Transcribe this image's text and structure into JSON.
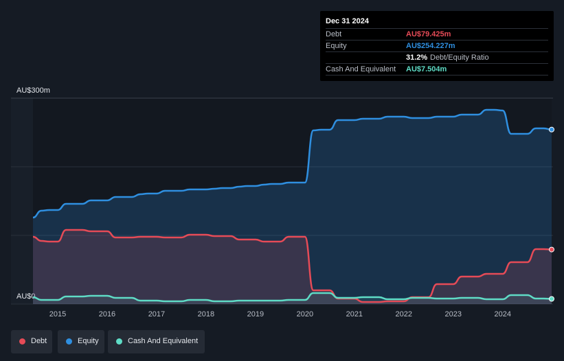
{
  "tooltip": {
    "date": "Dec 31 2024",
    "debt_label": "Debt",
    "debt_value": "AU$79.425m",
    "equity_label": "Equity",
    "equity_value": "AU$254.227m",
    "ratio_value": "31.2%",
    "ratio_label": "Debt/Equity Ratio",
    "cash_label": "Cash And Equivalent",
    "cash_value": "AU$7.504m"
  },
  "legend": {
    "debt": "Debt",
    "equity": "Equity",
    "cash": "Cash And Equivalent"
  },
  "colors": {
    "debt": "#e64b57",
    "equity": "#2f8fe0",
    "cash": "#5fdcc6",
    "background": "#151b24"
  },
  "chart_data": {
    "type": "area",
    "y_unit": "AU$ millions",
    "ylim": [
      0,
      300
    ],
    "y_tick_labels": [
      "AU$0",
      "AU$300m"
    ],
    "x_tick_labels": [
      "2015",
      "2016",
      "2017",
      "2018",
      "2019",
      "2020",
      "2021",
      "2022",
      "2023",
      "2024"
    ],
    "grid": true,
    "legend_position": "bottom-left",
    "series": [
      {
        "name": "Debt",
        "points": [
          [
            2014.5,
            98
          ],
          [
            2014.67,
            92
          ],
          [
            2014.83,
            91
          ],
          [
            2015.0,
            91
          ],
          [
            2015.17,
            108
          ],
          [
            2015.33,
            108
          ],
          [
            2015.5,
            108
          ],
          [
            2015.67,
            106
          ],
          [
            2015.83,
            106
          ],
          [
            2016.0,
            106
          ],
          [
            2016.17,
            97
          ],
          [
            2016.33,
            97
          ],
          [
            2016.5,
            97
          ],
          [
            2016.67,
            98
          ],
          [
            2016.83,
            98
          ],
          [
            2017.0,
            98
          ],
          [
            2017.17,
            97
          ],
          [
            2017.33,
            97
          ],
          [
            2017.5,
            97
          ],
          [
            2017.67,
            101
          ],
          [
            2017.83,
            101
          ],
          [
            2018.0,
            101
          ],
          [
            2018.17,
            99
          ],
          [
            2018.33,
            99
          ],
          [
            2018.5,
            99
          ],
          [
            2018.67,
            94
          ],
          [
            2018.83,
            94
          ],
          [
            2019.0,
            94
          ],
          [
            2019.17,
            91
          ],
          [
            2019.33,
            91
          ],
          [
            2019.5,
            91
          ],
          [
            2019.67,
            98
          ],
          [
            2019.83,
            98
          ],
          [
            2020.0,
            98
          ],
          [
            2020.17,
            20
          ],
          [
            2020.33,
            20
          ],
          [
            2020.5,
            20
          ],
          [
            2020.67,
            8
          ],
          [
            2020.83,
            8
          ],
          [
            2021.0,
            8
          ],
          [
            2021.17,
            3
          ],
          [
            2021.33,
            3
          ],
          [
            2021.5,
            3
          ],
          [
            2021.67,
            4
          ],
          [
            2021.83,
            4
          ],
          [
            2022.0,
            4
          ],
          [
            2022.17,
            10
          ],
          [
            2022.33,
            10
          ],
          [
            2022.5,
            10
          ],
          [
            2022.67,
            29
          ],
          [
            2022.83,
            29
          ],
          [
            2023.0,
            29
          ],
          [
            2023.17,
            40
          ],
          [
            2023.33,
            40
          ],
          [
            2023.5,
            40
          ],
          [
            2023.67,
            44
          ],
          [
            2023.83,
            44
          ],
          [
            2024.0,
            44
          ],
          [
            2024.17,
            61
          ],
          [
            2024.33,
            61
          ],
          [
            2024.5,
            61
          ],
          [
            2024.67,
            80
          ],
          [
            2024.83,
            80
          ],
          [
            2024.99,
            79.425
          ]
        ]
      },
      {
        "name": "Equity",
        "points": [
          [
            2014.5,
            126
          ],
          [
            2014.67,
            136
          ],
          [
            2014.83,
            137
          ],
          [
            2015.0,
            137
          ],
          [
            2015.17,
            146
          ],
          [
            2015.33,
            146
          ],
          [
            2015.5,
            146
          ],
          [
            2015.67,
            151
          ],
          [
            2015.83,
            151
          ],
          [
            2016.0,
            151
          ],
          [
            2016.17,
            156
          ],
          [
            2016.33,
            156
          ],
          [
            2016.5,
            156
          ],
          [
            2016.67,
            160
          ],
          [
            2016.83,
            161
          ],
          [
            2017.0,
            161
          ],
          [
            2017.17,
            165
          ],
          [
            2017.33,
            165
          ],
          [
            2017.5,
            165
          ],
          [
            2017.67,
            167
          ],
          [
            2017.83,
            167
          ],
          [
            2018.0,
            167
          ],
          [
            2018.17,
            168
          ],
          [
            2018.33,
            169
          ],
          [
            2018.5,
            169
          ],
          [
            2018.67,
            171
          ],
          [
            2018.83,
            172
          ],
          [
            2019.0,
            172
          ],
          [
            2019.17,
            174
          ],
          [
            2019.33,
            175
          ],
          [
            2019.5,
            175
          ],
          [
            2019.67,
            177
          ],
          [
            2019.83,
            177
          ],
          [
            2020.0,
            177
          ],
          [
            2020.17,
            253
          ],
          [
            2020.33,
            254
          ],
          [
            2020.5,
            254
          ],
          [
            2020.67,
            268
          ],
          [
            2020.83,
            268
          ],
          [
            2021.0,
            268
          ],
          [
            2021.17,
            270
          ],
          [
            2021.33,
            270
          ],
          [
            2021.5,
            270
          ],
          [
            2021.67,
            273
          ],
          [
            2021.83,
            273
          ],
          [
            2022.0,
            273
          ],
          [
            2022.17,
            271
          ],
          [
            2022.33,
            271
          ],
          [
            2022.5,
            271
          ],
          [
            2022.67,
            273
          ],
          [
            2022.83,
            273
          ],
          [
            2023.0,
            273
          ],
          [
            2023.17,
            276
          ],
          [
            2023.33,
            276
          ],
          [
            2023.5,
            276
          ],
          [
            2023.67,
            283
          ],
          [
            2023.83,
            283
          ],
          [
            2024.0,
            282
          ],
          [
            2024.17,
            248
          ],
          [
            2024.33,
            248
          ],
          [
            2024.5,
            248
          ],
          [
            2024.67,
            256
          ],
          [
            2024.83,
            256
          ],
          [
            2024.99,
            254.227
          ]
        ]
      },
      {
        "name": "Cash And Equivalent",
        "points": [
          [
            2014.5,
            10
          ],
          [
            2014.67,
            6
          ],
          [
            2014.83,
            6
          ],
          [
            2015.0,
            6
          ],
          [
            2015.17,
            11
          ],
          [
            2015.33,
            11
          ],
          [
            2015.5,
            11
          ],
          [
            2015.67,
            12
          ],
          [
            2015.83,
            12
          ],
          [
            2016.0,
            12
          ],
          [
            2016.17,
            9
          ],
          [
            2016.33,
            9
          ],
          [
            2016.5,
            9
          ],
          [
            2016.67,
            5
          ],
          [
            2016.83,
            5
          ],
          [
            2017.0,
            5
          ],
          [
            2017.17,
            4
          ],
          [
            2017.33,
            4
          ],
          [
            2017.5,
            4
          ],
          [
            2017.67,
            6
          ],
          [
            2017.83,
            6
          ],
          [
            2018.0,
            6
          ],
          [
            2018.17,
            4
          ],
          [
            2018.33,
            4
          ],
          [
            2018.5,
            4
          ],
          [
            2018.67,
            5
          ],
          [
            2018.83,
            5
          ],
          [
            2019.0,
            5
          ],
          [
            2019.17,
            5
          ],
          [
            2019.33,
            5
          ],
          [
            2019.5,
            5
          ],
          [
            2019.67,
            6
          ],
          [
            2019.83,
            6
          ],
          [
            2020.0,
            6
          ],
          [
            2020.17,
            16
          ],
          [
            2020.33,
            16
          ],
          [
            2020.5,
            16
          ],
          [
            2020.67,
            9
          ],
          [
            2020.83,
            9
          ],
          [
            2021.0,
            9
          ],
          [
            2021.17,
            10
          ],
          [
            2021.33,
            10
          ],
          [
            2021.5,
            10
          ],
          [
            2021.67,
            7
          ],
          [
            2021.83,
            7
          ],
          [
            2022.0,
            7
          ],
          [
            2022.17,
            9
          ],
          [
            2022.33,
            9
          ],
          [
            2022.5,
            9
          ],
          [
            2022.67,
            8
          ],
          [
            2022.83,
            8
          ],
          [
            2023.0,
            8
          ],
          [
            2023.17,
            9
          ],
          [
            2023.33,
            9
          ],
          [
            2023.5,
            9
          ],
          [
            2023.67,
            7
          ],
          [
            2023.83,
            7
          ],
          [
            2024.0,
            7
          ],
          [
            2024.17,
            13
          ],
          [
            2024.33,
            13
          ],
          [
            2024.5,
            13
          ],
          [
            2024.67,
            8
          ],
          [
            2024.83,
            8
          ],
          [
            2024.99,
            7.504
          ]
        ]
      }
    ]
  }
}
